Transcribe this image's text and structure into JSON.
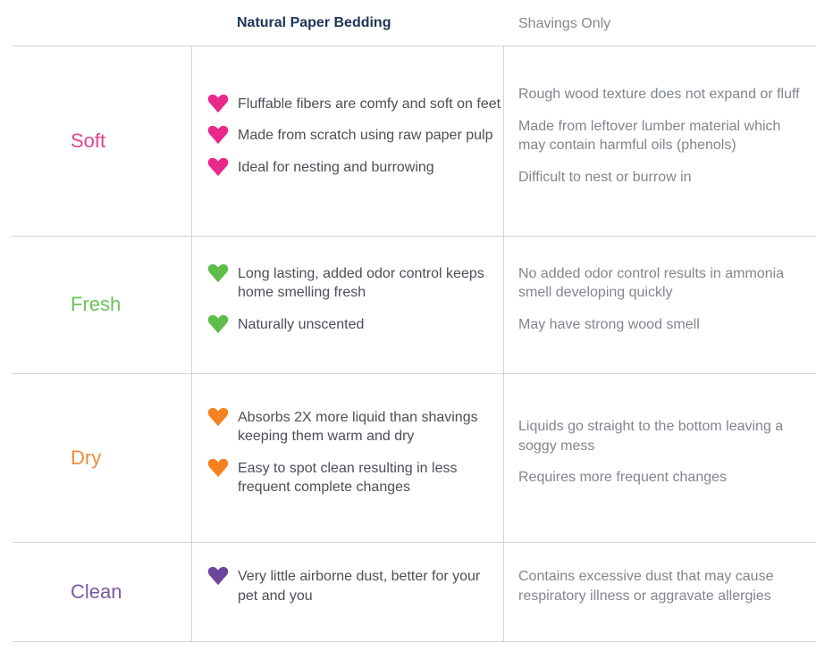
{
  "header": {
    "col1": "Natural Paper Bedding",
    "col2": "Shavings Only"
  },
  "rows": [
    {
      "label": "Soft",
      "color": "#e0458f",
      "heart_color": "#e8288a",
      "icon": "heart-icon",
      "paper": [
        "Fluffable fibers are comfy and soft on feet",
        "Made from scratch using raw paper pulp",
        "Ideal for nesting and burrowing"
      ],
      "shavings": [
        "Rough wood texture does not expand or fluff",
        "Made from leftover lumber material which may contain harmful oils (phenols)",
        "Difficult to nest or burrow in"
      ]
    },
    {
      "label": "Fresh",
      "color": "#6cc259",
      "heart_color": "#5dbe4b",
      "icon": "heart-icon",
      "paper": [
        "Long lasting, added odor control keeps home smelling fresh",
        "Naturally unscented"
      ],
      "shavings": [
        "No added odor control results in ammonia smell developing quickly",
        "May have strong wood smell"
      ]
    },
    {
      "label": "Dry",
      "color": "#f08a3a",
      "heart_color": "#f5821f",
      "icon": "heart-icon",
      "paper": [
        "Absorbs 2X more liquid than shavings keeping them warm and dry",
        "Easy to spot clean resulting in less frequent complete changes"
      ],
      "shavings": [
        "Liquids go straight to the bottom leaving a soggy mess",
        "Requires more frequent changes"
      ]
    },
    {
      "label": "Clean",
      "color": "#7a5aa3",
      "heart_color": "#6b469b",
      "icon": "heart-icon",
      "paper": [
        "Very little airborne dust, better for your pet and you"
      ],
      "shavings": [
        "Contains excessive dust that may cause respiratory illness or aggravate allergies"
      ]
    }
  ]
}
